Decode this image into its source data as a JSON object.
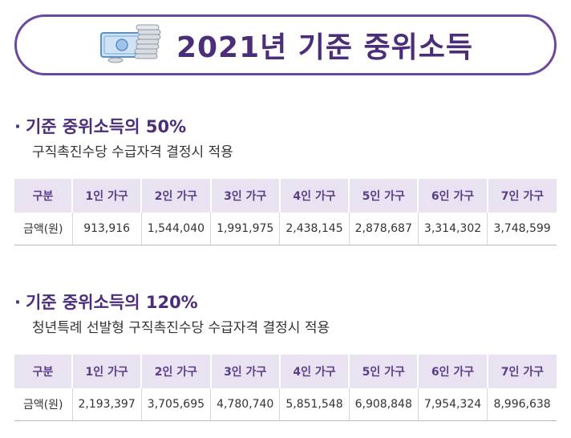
{
  "title": "2021년 기준 중위소득",
  "icons": {
    "title_icon": "money-coins-icon"
  },
  "colors": {
    "accent": "#4b2d7a",
    "header_bg": "#e9e3f1",
    "border": "#6b4a9e"
  },
  "sections": [
    {
      "bullet": "·",
      "heading": "기준 중위소득의 50%",
      "subtitle": "구직촉진수당 수급자격 결정시 적용",
      "headers": [
        "구분",
        "1인 가구",
        "2인 가구",
        "3인 가구",
        "4인 가구",
        "5인 가구",
        "6인 가구",
        "7인 가구"
      ],
      "row_label": "금액(원)",
      "values": [
        "913,916",
        "1,544,040",
        "1,991,975",
        "2,438,145",
        "2,878,687",
        "3,314,302",
        "3,748,599"
      ]
    },
    {
      "bullet": "·",
      "heading": "기준 중위소득의 120%",
      "subtitle": "청년특례 선발형 구직촉진수당 수급자격 결정시 적용",
      "headers": [
        "구분",
        "1인 가구",
        "2인 가구",
        "3인 가구",
        "4인 가구",
        "5인 가구",
        "6인 가구",
        "7인 가구"
      ],
      "row_label": "금액(원)",
      "values": [
        "2,193,397",
        "3,705,695",
        "4,780,740",
        "5,851,548",
        "6,908,848",
        "7,954,324",
        "8,996,638"
      ]
    }
  ]
}
